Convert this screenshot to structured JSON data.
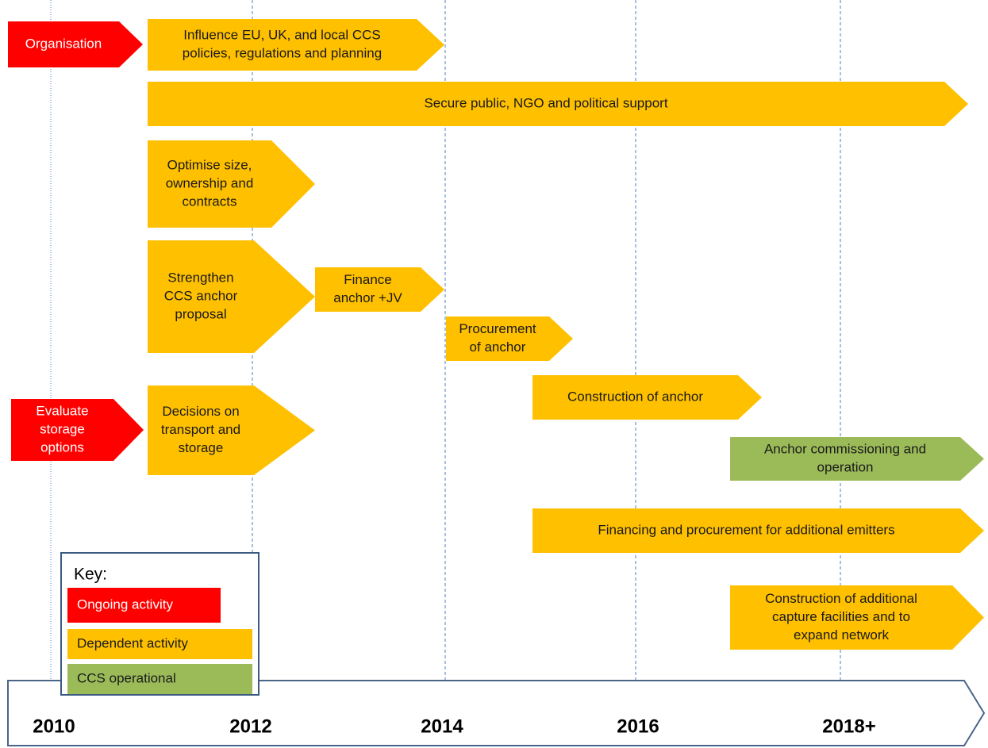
{
  "activities": [
    {
      "lines": [
        "Organisation"
      ],
      "color": "#ff0000",
      "text_color": "#ffffff"
    },
    {
      "lines": [
        "Influence EU, UK, and local CCS",
        "policies, regulations and planning"
      ],
      "color": "#ffc000",
      "text_color": "#1a1a1a"
    },
    {
      "lines": [
        "Secure public, NGO and political support"
      ],
      "color": "#ffc000",
      "text_color": "#1a1a1a"
    },
    {
      "lines": [
        "Optimise size,",
        "ownership and",
        "contracts"
      ],
      "color": "#ffc000",
      "text_color": "#1a1a1a"
    },
    {
      "lines": [
        "Strengthen",
        "CCS anchor",
        "proposal"
      ],
      "color": "#ffc000",
      "text_color": "#1a1a1a"
    },
    {
      "lines": [
        "Finance",
        "anchor +JV"
      ],
      "color": "#ffc000",
      "text_color": "#1a1a1a"
    },
    {
      "lines": [
        "Procurement",
        "of anchor"
      ],
      "color": "#ffc000",
      "text_color": "#1a1a1a"
    },
    {
      "lines": [
        "Construction of anchor"
      ],
      "color": "#ffc000",
      "text_color": "#1a1a1a"
    },
    {
      "lines": [
        "Evaluate",
        "storage",
        "options"
      ],
      "color": "#ff0000",
      "text_color": "#ffffff"
    },
    {
      "lines": [
        "Decisions on",
        "transport and",
        "storage"
      ],
      "color": "#ffc000",
      "text_color": "#1a1a1a"
    },
    {
      "lines": [
        "Anchor commissioning and",
        "operation"
      ],
      "color": "#9bbb59",
      "text_color": "#1a1a1a"
    },
    {
      "lines": [
        "Financing and procurement for additional emitters"
      ],
      "color": "#ffc000",
      "text_color": "#1a1a1a"
    },
    {
      "lines": [
        "Construction of additional",
        "capture facilities and to",
        "expand network"
      ],
      "color": "#ffc000",
      "text_color": "#1a1a1a"
    }
  ],
  "years": [
    "2010",
    "2012",
    "2014",
    "2016",
    "2018+"
  ],
  "key": {
    "title": "Key:",
    "items": [
      {
        "label": "Ongoing activity",
        "color": "#ff0000"
      },
      {
        "label": "Dependent activity",
        "color": "#ffc000"
      },
      {
        "label": "CCS operational",
        "color": "#9bbb59"
      }
    ]
  }
}
